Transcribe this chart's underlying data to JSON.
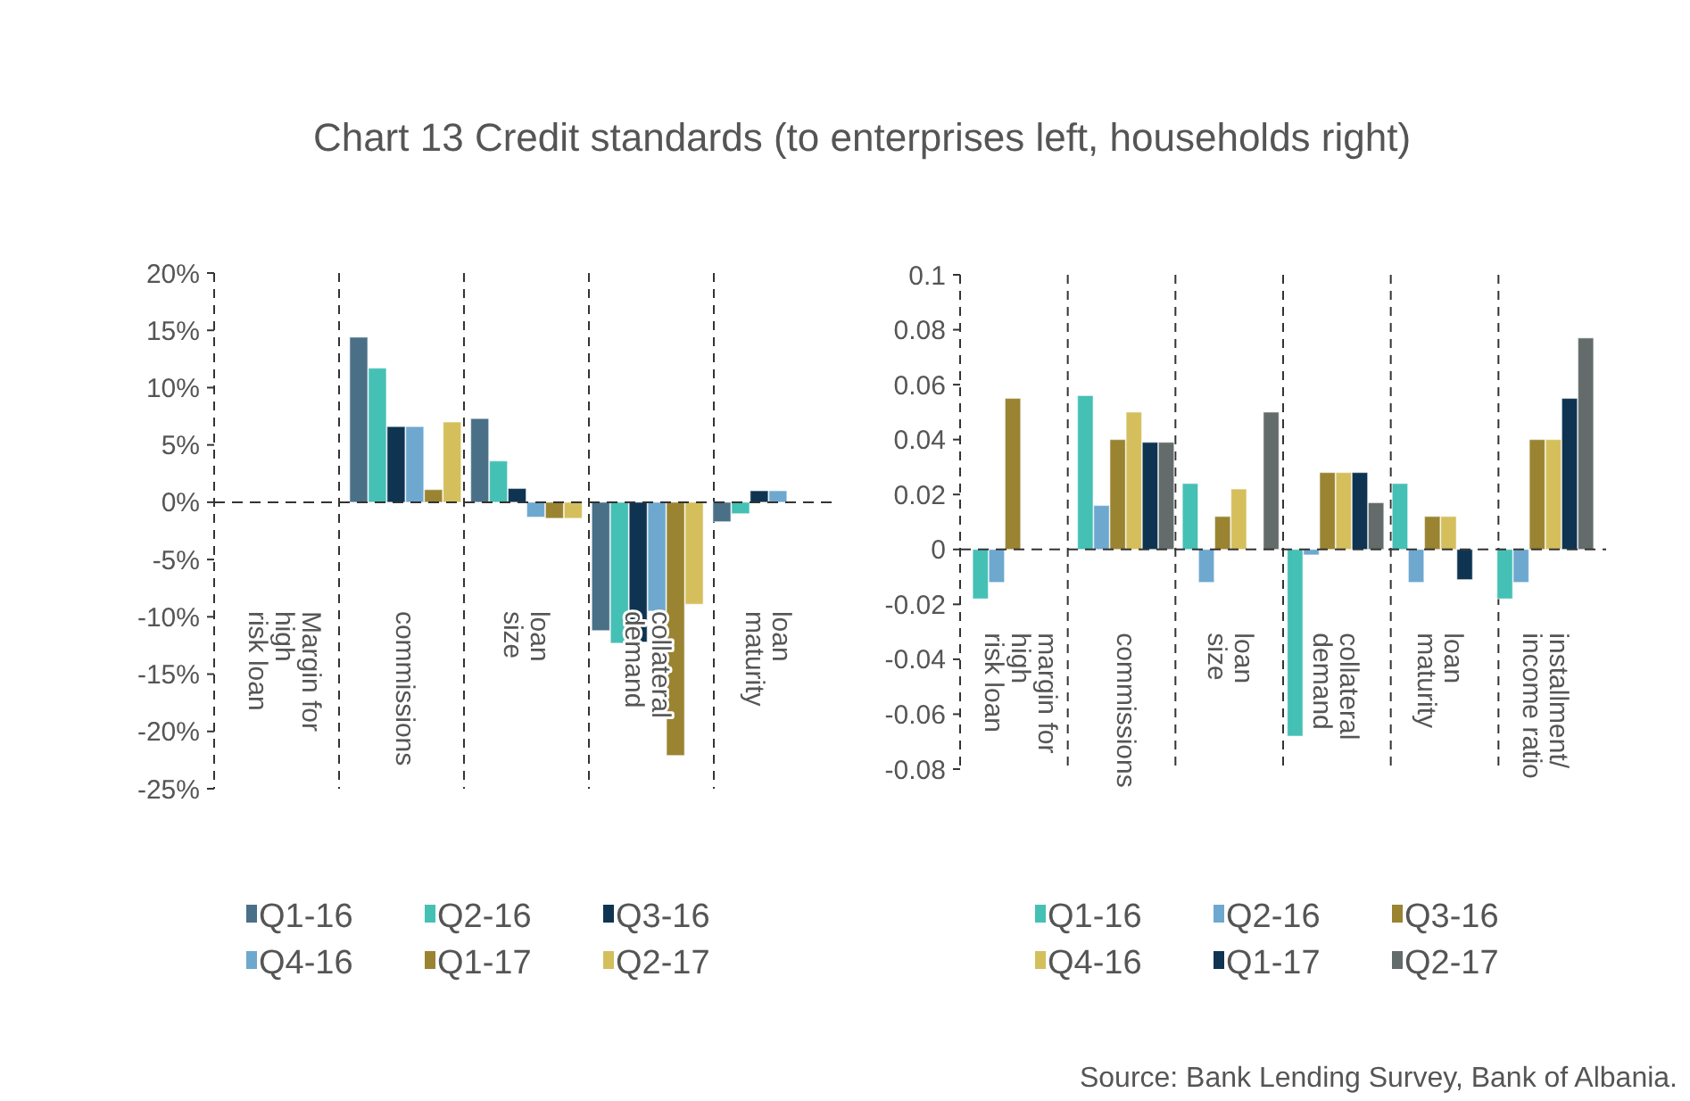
{
  "chart_data": [
    {
      "type": "bar",
      "title": "Chart 13 Credit standards (to enterprises left, households right)",
      "categories": [
        "Margin for\nhigh\nrisk loan",
        "commissions",
        "loan\nsize",
        "collateral\ndemand",
        "loan\nmaturity"
      ],
      "series": [
        {
          "name": "Q1-16",
          "color": "#4a7088",
          "values": [
            null,
            14.4,
            7.3,
            -11.2,
            -1.7
          ]
        },
        {
          "name": "Q2-16",
          "color": "#45c0b5",
          "values": [
            null,
            11.7,
            3.6,
            -12.3,
            -1.0
          ]
        },
        {
          "name": "Q3-16",
          "color": "#0e3452",
          "values": [
            null,
            6.6,
            1.2,
            -12.2,
            1.0
          ]
        },
        {
          "name": "Q4-16",
          "color": "#6ea8cf",
          "values": [
            null,
            6.6,
            -1.3,
            -9.5,
            1.0
          ]
        },
        {
          "name": "Q1-17",
          "color": "#9a8431",
          "values": [
            null,
            1.1,
            -1.4,
            -22.1,
            null
          ]
        },
        {
          "name": "Q2-17",
          "color": "#d4bf5c",
          "values": [
            null,
            7.0,
            -1.4,
            -8.9,
            null
          ]
        }
      ],
      "ylim": [
        -25,
        20
      ],
      "yticks": [
        {
          "value": 20,
          "label": "20%"
        },
        {
          "value": 15,
          "label": "15%"
        },
        {
          "value": 10,
          "label": "10%"
        },
        {
          "value": 5,
          "label": "5%"
        },
        {
          "value": 0,
          "label": "0%"
        },
        {
          "value": -5,
          "label": "-5%"
        },
        {
          "value": -10,
          "label": "-10%"
        },
        {
          "value": -15,
          "label": "-15%"
        },
        {
          "value": -20,
          "label": "-20%"
        },
        {
          "value": -25,
          "label": "-25%"
        }
      ],
      "legend": "bottom",
      "grid": false,
      "ref_lines": [
        {
          "axis": "y",
          "value": 0,
          "line_style": "dashed",
          "color": "#333333"
        }
      ]
    },
    {
      "type": "bar",
      "categories": [
        "margin for\nhigh\nrisk loan",
        "commissions",
        "loan\nsize",
        "collateral\ndemand",
        "loan\nmaturity",
        "installment/\nincome ratio"
      ],
      "series": [
        {
          "name": "Q1-16",
          "color": "#45c0b5",
          "values": [
            -0.018,
            0.056,
            0.024,
            -0.068,
            0.024,
            -0.018
          ]
        },
        {
          "name": "Q2-16",
          "color": "#6ea8cf",
          "values": [
            -0.012,
            0.016,
            -0.012,
            -0.002,
            -0.012,
            -0.012
          ]
        },
        {
          "name": "Q3-16",
          "color": "#9a8431",
          "values": [
            0.055,
            0.04,
            0.012,
            0.028,
            0.012,
            0.04
          ]
        },
        {
          "name": "Q4-16",
          "color": "#d4bf5c",
          "values": [
            null,
            0.05,
            0.022,
            0.028,
            0.012,
            0.04
          ]
        },
        {
          "name": "Q1-17",
          "color": "#0e3452",
          "values": [
            null,
            0.039,
            null,
            0.028,
            -0.011,
            0.055
          ]
        },
        {
          "name": "Q2-17",
          "color": "#646b6b",
          "values": [
            null,
            0.039,
            0.05,
            0.017,
            null,
            0.077
          ]
        }
      ],
      "ylim": [
        -0.08,
        0.1
      ],
      "yticks": [
        0.1,
        0.08,
        0.06,
        0.04,
        0.02,
        {
          "value": 0,
          "label": "0"
        },
        -0.02,
        -0.04,
        -0.06,
        -0.08
      ],
      "legend": "bottom",
      "grid": false,
      "ref_lines": [
        {
          "axis": "y",
          "value": 0,
          "line_style": "dashed",
          "color": "#333333"
        }
      ],
      "annotations": [
        "Source: Bank Lending Survey, Bank of Albania."
      ]
    }
  ]
}
